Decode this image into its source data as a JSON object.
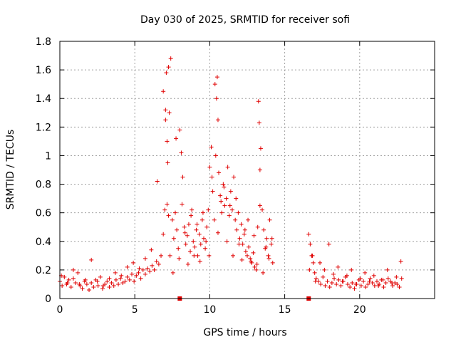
{
  "chart_data": {
    "type": "scatter",
    "title": "Day 030 of 2025, SRMTID for receiver sofi",
    "xlabel": "GPS time / hours",
    "ylabel": "SRMTID / TECUs",
    "xlim": [
      0,
      25
    ],
    "ylim": [
      0,
      1.8
    ],
    "x_ticks": [
      0,
      5,
      10,
      15,
      20
    ],
    "x_tick_labels": [
      "0",
      "5",
      "10",
      "15",
      "20"
    ],
    "y_ticks": [
      0,
      0.2,
      0.4,
      0.6,
      0.8,
      1.0,
      1.2,
      1.4,
      1.6,
      1.8
    ],
    "y_tick_labels": [
      "0",
      "0.2",
      "0.4",
      "0.6",
      "0.8",
      "1",
      "1.2",
      "1.4",
      "1.6",
      "1.8"
    ],
    "grid": true,
    "marker": "plus",
    "color": "#e00000",
    "gap_markers_x": [
      8.0,
      16.6
    ],
    "series": [
      {
        "name": "SRMTID",
        "x": [
          0.0,
          0.15,
          0.3,
          0.45,
          0.6,
          0.75,
          0.9,
          1.05,
          1.2,
          1.35,
          1.5,
          1.65,
          1.8,
          1.95,
          2.1,
          2.25,
          2.4,
          2.55,
          2.7,
          2.85,
          3.0,
          3.15,
          3.3,
          3.45,
          3.6,
          3.75,
          3.9,
          4.05,
          4.2,
          4.35,
          4.5,
          4.65,
          4.8,
          4.95,
          5.1,
          5.25,
          5.4,
          5.55,
          5.7,
          5.85,
          6.0,
          6.15,
          6.3,
          6.45,
          6.6,
          6.75,
          6.9,
          7.0,
          7.05,
          7.1,
          7.15,
          7.2,
          7.25,
          7.3,
          7.4,
          7.5,
          7.6,
          7.7,
          7.8,
          7.9,
          8.0,
          8.1,
          8.2,
          8.3,
          8.4,
          8.5,
          8.6,
          8.7,
          8.8,
          8.9,
          9.0,
          9.1,
          9.2,
          9.3,
          9.4,
          9.5,
          9.6,
          9.7,
          9.8,
          9.9,
          10.0,
          10.1,
          10.2,
          10.3,
          10.4,
          10.45,
          10.5,
          10.55,
          10.6,
          10.7,
          10.8,
          10.9,
          11.0,
          11.1,
          11.2,
          11.3,
          11.4,
          11.5,
          11.6,
          11.7,
          11.8,
          11.9,
          12.0,
          12.1,
          12.2,
          12.3,
          12.4,
          12.5,
          12.6,
          12.7,
          12.8,
          12.9,
          13.0,
          13.1,
          13.2,
          13.25,
          13.3,
          13.35,
          13.4,
          13.5,
          13.6,
          13.7,
          13.8,
          13.9,
          14.0,
          14.1,
          14.2,
          16.6,
          16.7,
          16.8,
          16.9,
          17.0,
          17.1,
          17.25,
          17.4,
          17.55,
          17.7,
          17.85,
          18.0,
          18.15,
          18.3,
          18.45,
          18.6,
          18.75,
          18.9,
          19.05,
          19.2,
          19.35,
          19.5,
          19.65,
          19.8,
          19.95,
          20.1,
          20.25,
          20.4,
          20.55,
          20.7,
          20.85,
          21.0,
          21.15,
          21.3,
          21.45,
          21.6,
          21.75,
          21.9,
          22.05,
          22.2,
          22.35,
          22.5,
          22.65,
          22.8,
          0.1,
          0.5,
          0.9,
          1.3,
          1.7,
          2.1,
          2.5,
          2.9,
          3.3,
          3.7,
          4.1,
          4.5,
          4.9,
          5.3,
          5.7,
          6.1,
          6.5,
          6.9,
          7.05,
          7.15,
          7.25,
          7.35,
          7.55,
          7.75,
          7.95,
          8.15,
          8.35,
          8.55,
          8.75,
          8.95,
          9.15,
          9.35,
          9.55,
          9.75,
          9.95,
          10.15,
          10.35,
          10.55,
          10.75,
          10.95,
          11.15,
          11.35,
          11.55,
          11.75,
          11.95,
          12.15,
          12.35,
          12.55,
          12.75,
          12.95,
          13.15,
          13.35,
          13.55,
          13.75,
          13.95,
          14.15,
          16.65,
          16.85,
          17.05,
          17.35,
          17.65,
          17.95,
          18.25,
          18.55,
          18.85,
          19.15,
          19.45,
          19.75,
          20.05,
          20.35,
          20.65,
          20.95,
          21.25,
          21.55,
          21.85,
          22.15,
          22.45,
          22.75
        ],
        "y": [
          0.12,
          0.09,
          0.15,
          0.1,
          0.13,
          0.08,
          0.14,
          0.11,
          0.18,
          0.09,
          0.07,
          0.12,
          0.1,
          0.06,
          0.11,
          0.08,
          0.13,
          0.09,
          0.15,
          0.07,
          0.1,
          0.12,
          0.08,
          0.11,
          0.09,
          0.13,
          0.1,
          0.14,
          0.11,
          0.12,
          0.15,
          0.13,
          0.17,
          0.12,
          0.16,
          0.18,
          0.14,
          0.2,
          0.17,
          0.21,
          0.19,
          0.23,
          0.2,
          0.26,
          0.24,
          0.3,
          0.45,
          0.62,
          1.25,
          1.58,
          1.1,
          0.95,
          1.62,
          1.3,
          1.68,
          0.55,
          0.42,
          0.6,
          0.48,
          0.35,
          1.18,
          1.02,
          0.85,
          0.5,
          0.38,
          0.44,
          0.52,
          0.33,
          0.62,
          0.4,
          0.36,
          0.48,
          0.3,
          0.45,
          0.38,
          0.55,
          0.42,
          0.35,
          0.5,
          0.62,
          0.92,
          1.06,
          0.75,
          0.55,
          1.0,
          1.4,
          1.55,
          1.25,
          0.88,
          0.72,
          0.6,
          0.8,
          0.65,
          0.7,
          0.92,
          0.58,
          0.75,
          0.62,
          0.85,
          0.55,
          0.48,
          0.6,
          0.42,
          0.52,
          0.38,
          0.45,
          0.33,
          0.3,
          0.36,
          0.28,
          0.25,
          0.32,
          0.22,
          0.2,
          0.5,
          1.38,
          1.23,
          0.9,
          1.05,
          0.62,
          0.48,
          0.35,
          0.42,
          0.3,
          0.55,
          0.38,
          0.25,
          0.45,
          0.38,
          0.3,
          0.25,
          0.18,
          0.14,
          0.12,
          0.1,
          0.15,
          0.09,
          0.12,
          0.08,
          0.11,
          0.14,
          0.1,
          0.13,
          0.09,
          0.12,
          0.15,
          0.1,
          0.08,
          0.11,
          0.07,
          0.1,
          0.13,
          0.09,
          0.12,
          0.08,
          0.1,
          0.14,
          0.11,
          0.09,
          0.12,
          0.1,
          0.13,
          0.08,
          0.11,
          0.14,
          0.12,
          0.09,
          0.11,
          0.1,
          0.08,
          0.14,
          0.16,
          0.11,
          0.2,
          0.1,
          0.13,
          0.27,
          0.12,
          0.09,
          0.14,
          0.18,
          0.16,
          0.22,
          0.25,
          0.21,
          0.28,
          0.34,
          0.82,
          1.45,
          1.32,
          0.66,
          0.58,
          0.3,
          0.18,
          1.12,
          0.28,
          0.66,
          0.46,
          0.24,
          0.58,
          0.3,
          0.52,
          0.26,
          0.6,
          0.4,
          0.3,
          0.85,
          1.5,
          0.46,
          0.68,
          0.78,
          0.4,
          0.65,
          0.3,
          0.7,
          0.38,
          0.27,
          0.48,
          0.55,
          0.26,
          0.44,
          0.24,
          0.65,
          0.18,
          0.36,
          0.28,
          0.42,
          0.2,
          0.3,
          0.12,
          0.25,
          0.2,
          0.38,
          0.17,
          0.22,
          0.12,
          0.16,
          0.2,
          0.1,
          0.14,
          0.18,
          0.12,
          0.16,
          0.09,
          0.13,
          0.2,
          0.11,
          0.15,
          0.26
        ]
      }
    ]
  }
}
